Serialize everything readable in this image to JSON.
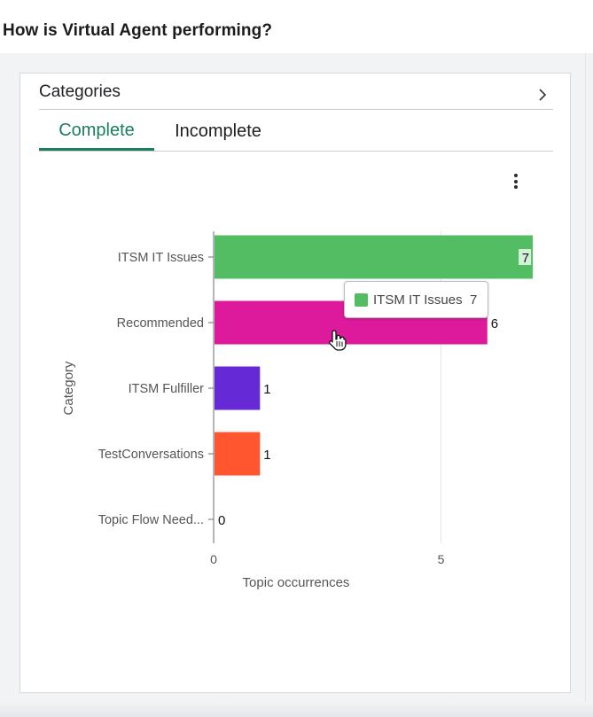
{
  "page": {
    "heading": "How is Virtual Agent performing?"
  },
  "card": {
    "title": "Categories",
    "tabs": [
      {
        "label": "Complete",
        "active": true
      },
      {
        "label": "Incomplete",
        "active": false
      }
    ]
  },
  "tooltip": {
    "label": "ITSM IT Issues",
    "value": "7",
    "color": "#52bd63"
  },
  "chart_data": {
    "type": "bar",
    "orientation": "horizontal",
    "categories": [
      "ITSM IT Issues",
      "Recommended",
      "ITSM Fulfiller",
      "TestConversations",
      "Topic Flow Need..."
    ],
    "values": [
      7,
      6,
      1,
      1,
      0
    ],
    "colors": [
      "#52bd63",
      "#dd1a9b",
      "#6629d6",
      "#ff5630",
      "#52bd63"
    ],
    "xlabel": "Topic occurrences",
    "ylabel": "Category",
    "xticks": [
      "0",
      "5"
    ],
    "xlim": [
      0,
      7
    ],
    "grid": true
  }
}
